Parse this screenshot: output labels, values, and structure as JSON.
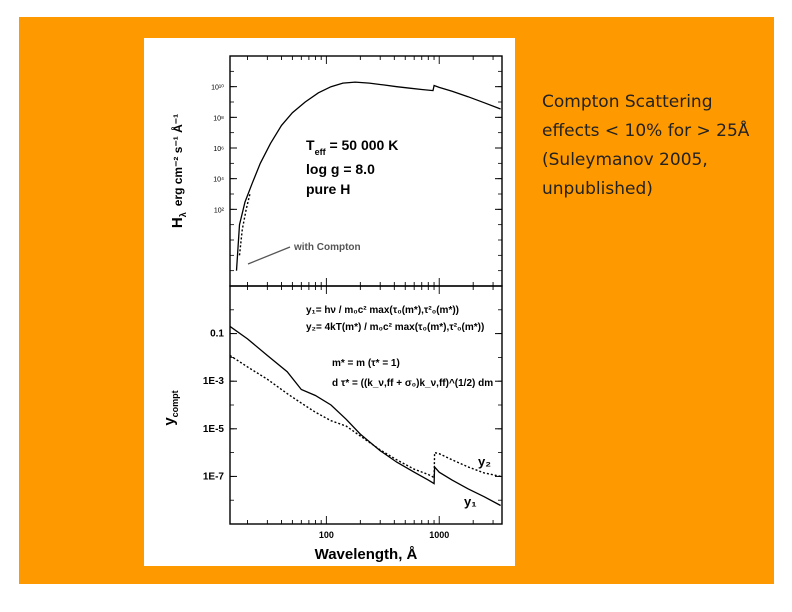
{
  "slide": {
    "background_color": "#ff9900",
    "caption_lines": [
      "Compton Scattering",
      "effects < 10% for > 25Å",
      "(Suleymanov 2005,",
      "unpublished)"
    ]
  },
  "chart_data": [
    {
      "type": "line",
      "panel": "top",
      "ylabel": "H",
      "ylabel_subscript": "λ",
      "ylabel_units": "erg cm⁻² s⁻¹ Å⁻¹",
      "xscale": "log",
      "yscale": "log",
      "xlim": [
        14,
        3600
      ],
      "ylim": [
        0.001,
        1000000000000.0
      ],
      "y_ticks": [
        "10¹⁰",
        "10⁸",
        "10⁶",
        "10⁴",
        "10²"
      ],
      "y_tick_values": [
        10000000000.0,
        100000000.0,
        1000000.0,
        10000.0,
        100.0
      ],
      "annotation_lines": [
        {
          "main": "T",
          "sub": "eff",
          "rest": " = 50 000 K"
        },
        {
          "main": "log g = 8.0",
          "sub": "",
          "rest": ""
        },
        {
          "main": "pure H",
          "sub": "",
          "rest": ""
        }
      ],
      "arrow_label": "with Compton",
      "series": [
        {
          "style": "solid",
          "x": [
            16,
            17,
            19,
            22,
            26,
            32,
            40,
            50,
            65,
            85,
            110,
            140,
            180,
            240,
            320,
            420,
            550,
            700,
            880,
            900,
            1000,
            1300,
            1800,
            2500,
            3500
          ],
          "y": [
            0.01,
            10,
            300,
            5000.0,
            100000.0,
            2000000.0,
            30000000.0,
            200000000.0,
            1000000000.0,
            4000000000.0,
            10000000000.0,
            17000000000.0,
            20000000000.0,
            17000000000.0,
            13000000000.0,
            10000000000.0,
            8000000000.0,
            6500000000.0,
            5500000000.0,
            12000000000.0,
            9000000000.0,
            5000000000.0,
            2200000000.0,
            900000000.0,
            350000000.0
          ]
        },
        {
          "style": "dotted",
          "x": [
            17,
            18,
            19.5,
            21
          ],
          "y": [
            0.1,
            5,
            100,
            1000.0
          ]
        }
      ]
    },
    {
      "type": "line",
      "panel": "bottom",
      "xlabel": "Wavelength,  Å",
      "ylabel": "y",
      "ylabel_subscript": "compt",
      "xscale": "log",
      "yscale": "log",
      "xlim": [
        14,
        3600
      ],
      "ylim": [
        1e-09,
        10
      ],
      "x_ticks": [
        "100",
        "1000"
      ],
      "x_tick_values": [
        100,
        1000
      ],
      "y_ticks": [
        "0.1",
        "1E-3",
        "1E-5",
        "1E-7"
      ],
      "y_tick_values": [
        0.1,
        0.001,
        1e-05,
        1e-07
      ],
      "equations": [
        "y₁= hν / m₀c² max(τ₀(m*),τ²₀(m*))",
        "y₂= 4kT(m*) / m₀c² max(τ₀(m*),τ²₀(m*))",
        "m* = m (τ* = 1)",
        "d τ* = ((k_ν,ff + σ₀)k_ν,ff)^(1/2) dm"
      ],
      "series": [
        {
          "name": "y₁",
          "style": "solid",
          "x": [
            14,
            20,
            30,
            45,
            60,
            80,
            110,
            150,
            200,
            300,
            420,
            600,
            800,
            900,
            910,
            1000,
            1300,
            1800,
            2500,
            3500
          ],
          "y": [
            0.2,
            0.06,
            0.012,
            0.0025,
            0.00045,
            0.00025,
            0.0001,
            2.5e-05,
            6e-06,
            1.2e-06,
            4e-07,
            1.5e-07,
            7e-08,
            5e-08,
            2.5e-07,
            1.5e-07,
            7e-08,
            3e-08,
            1.4e-08,
            6e-09
          ]
        },
        {
          "name": "y₂",
          "style": "dotted",
          "x": [
            14,
            20,
            30,
            45,
            60,
            80,
            110,
            150,
            200,
            300,
            420,
            600,
            800,
            900,
            910,
            1000,
            1300,
            1800,
            2500,
            3500
          ],
          "y": [
            0.012,
            0.004,
            0.0012,
            0.0003,
            0.00012,
            5e-05,
            2.2e-05,
            1.3e-05,
            5e-06,
            1.3e-06,
            5e-07,
            2e-07,
            1.2e-07,
            9e-08,
            1e-06,
            9e-07,
            5e-07,
            2.5e-07,
            1.4e-07,
            1e-07
          ]
        }
      ]
    }
  ]
}
